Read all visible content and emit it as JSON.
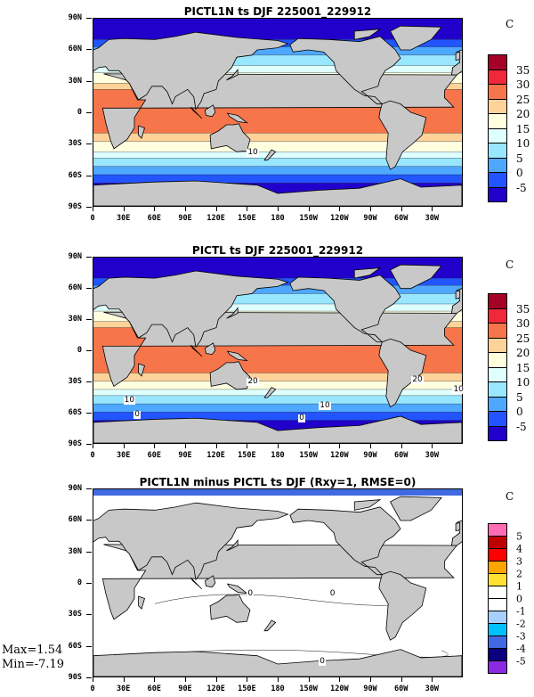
{
  "x_ticks": [
    "0",
    "30E",
    "60E",
    "90E",
    "120E",
    "150E",
    "180",
    "150W",
    "120W",
    "90W",
    "60W",
    "30W"
  ],
  "y_ticks": [
    "90N",
    "60N",
    "30N",
    "0",
    "30S",
    "60S",
    "90S"
  ],
  "panels": [
    {
      "title": "PICTL1N ts DJF 225001_229912",
      "unit": "C",
      "colorbar_labels": [
        "35",
        "30",
        "25",
        "20",
        "15",
        "10",
        "5",
        "0",
        "-5"
      ],
      "colorbar_colors": [
        "#a50026",
        "#f0283a",
        "#f6754a",
        "#fdd39a",
        "#ffffe0",
        "#e0ffff",
        "#99e6ff",
        "#4ea8ff",
        "#2255ff",
        "#2200cc"
      ],
      "contour_labels": [
        "10"
      ]
    },
    {
      "title": "PICTL ts DJF 225001_229912",
      "unit": "C",
      "colorbar_labels": [
        "35",
        "30",
        "25",
        "20",
        "15",
        "10",
        "5",
        "0",
        "-5"
      ],
      "colorbar_colors": [
        "#a50026",
        "#f0283a",
        "#f6754a",
        "#fdd39a",
        "#ffffe0",
        "#e0ffff",
        "#99e6ff",
        "#4ea8ff",
        "#2255ff",
        "#2200cc"
      ],
      "contour_labels": [
        "20",
        "20",
        "10",
        "10",
        "10",
        "0",
        "0"
      ]
    },
    {
      "title": "PICTL1N minus PICTL ts DJF (Rxy=1, RMSE=0)",
      "unit": "C",
      "colorbar_labels": [
        "5",
        "4",
        "3",
        "2",
        "1",
        "0",
        "-1",
        "-2",
        "-3",
        "-4",
        "-5"
      ],
      "colorbar_colors": [
        "#ff6eb4",
        "#c00000",
        "#ff0000",
        "#ffa500",
        "#ffe033",
        "#ffffff",
        "#ffffff",
        "#a8d0ff",
        "#00c0ff",
        "#4169e1",
        "#0a0080",
        "#8a2be2"
      ],
      "contour_labels": [
        "0",
        "0",
        "0"
      ],
      "max_label": "Max=1.54",
      "min_label": "Min=-7.19"
    }
  ]
}
